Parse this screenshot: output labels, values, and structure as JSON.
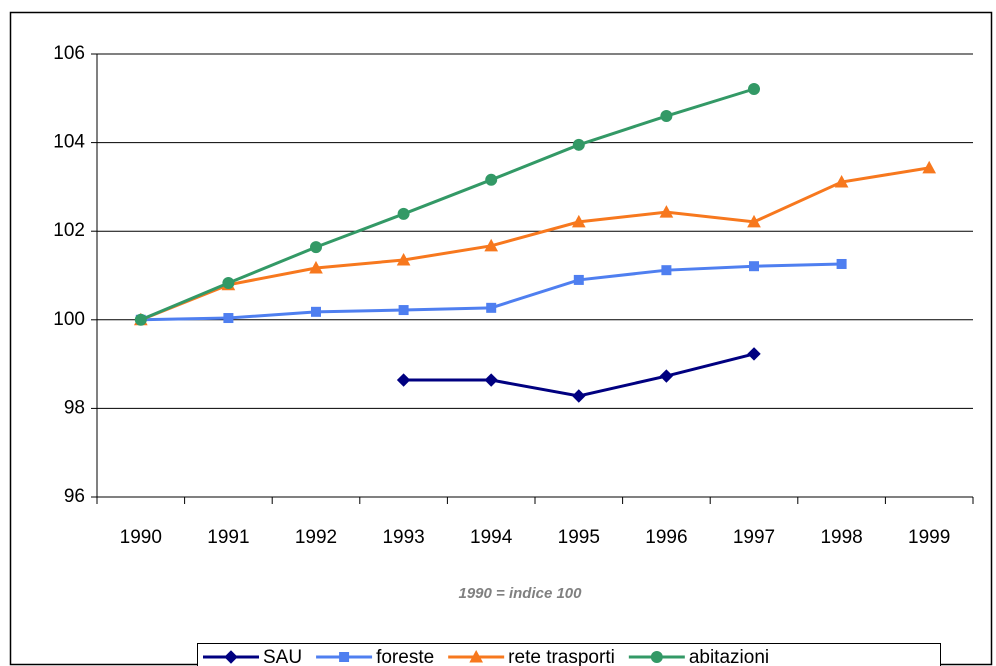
{
  "chart_data": {
    "type": "line",
    "subtitle": "1990 = indice 100",
    "categories": [
      "1990",
      "1991",
      "1992",
      "1993",
      "1994",
      "1995",
      "1996",
      "1997",
      "1998",
      "1999"
    ],
    "series": [
      {
        "name": "SAU",
        "color": "#000080",
        "marker": "diamond",
        "values": [
          null,
          null,
          null,
          98.64,
          98.64,
          98.28,
          98.73,
          99.23,
          null,
          null
        ]
      },
      {
        "name": "foreste",
        "color": "#4f7ff0",
        "marker": "square",
        "values": [
          100,
          100.04,
          100.18,
          100.22,
          100.27,
          100.9,
          101.12,
          101.21,
          101.26,
          null
        ]
      },
      {
        "name": "rete trasporti",
        "color": "#f7781e",
        "marker": "triangle",
        "values": [
          100,
          100.79,
          101.17,
          101.35,
          101.67,
          102.21,
          102.43,
          102.21,
          103.11,
          103.43
        ]
      },
      {
        "name": "abitazioni",
        "color": "#339966",
        "marker": "circle",
        "values": [
          100,
          100.83,
          101.64,
          102.39,
          103.16,
          103.95,
          104.6,
          105.21,
          null,
          null
        ]
      }
    ],
    "ylim": [
      96,
      106
    ],
    "yticks": [
      96,
      98,
      100,
      102,
      104,
      106
    ],
    "grid": true,
    "legend": "bottom"
  }
}
